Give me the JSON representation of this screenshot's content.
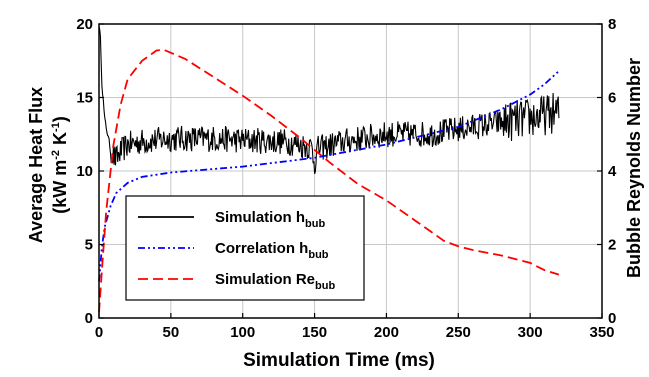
{
  "chart_data": {
    "type": "line",
    "xlabel": "Simulation Time (ms)",
    "ylabel_left": {
      "line1": "Average Heat Flux",
      "line2_prefix": "(kW m",
      "sup1": "-2",
      "mid": " K",
      "sup2": "-1",
      "suffix": ")"
    },
    "ylabel_right": "Bubble Reynolds Number",
    "xlim": [
      0,
      350
    ],
    "ylim_left": [
      0,
      20
    ],
    "ylim_right": [
      0,
      8
    ],
    "x_ticks": [
      "0",
      "50",
      "100",
      "150",
      "200",
      "250",
      "300",
      "350"
    ],
    "y_left_ticks": [
      "0",
      "5",
      "10",
      "15",
      "20"
    ],
    "y_right_ticks": [
      "0",
      "2",
      "4",
      "6",
      "8"
    ],
    "grid": true,
    "legend_position": "bottom-left",
    "series": [
      {
        "name": "Simulation h",
        "subscript": "bub",
        "axis": "left",
        "color": "#000000",
        "style": "solid",
        "noisy": true,
        "x": [
          0,
          1,
          2,
          4,
          6,
          8,
          10,
          12,
          15,
          20,
          30,
          50,
          80,
          100,
          130,
          148,
          150,
          152,
          170,
          200,
          230,
          260,
          280,
          300,
          310,
          318,
          320
        ],
        "y": [
          20,
          19,
          16,
          13.5,
          12.5,
          11.5,
          11,
          10.8,
          11.3,
          11.8,
          12,
          12.2,
          12.2,
          12.1,
          12,
          11.6,
          10.5,
          11.5,
          12,
          12.5,
          12.5,
          13,
          13.3,
          13.6,
          13.8,
          14,
          14
        ]
      },
      {
        "name": "Correlation h",
        "subscript": "bub",
        "axis": "left",
        "color": "#0000ff",
        "style": "dash-dot-dot",
        "x": [
          0,
          2,
          4,
          8,
          12,
          20,
          30,
          50,
          100,
          150,
          200,
          250,
          280,
          300,
          310,
          320
        ],
        "y": [
          2.5,
          4.8,
          6.2,
          7.6,
          8.5,
          9.2,
          9.6,
          9.9,
          10.3,
          10.9,
          11.8,
          13,
          14.2,
          15.2,
          15.9,
          16.8
        ]
      },
      {
        "name": "Simulation Re",
        "subscript": "bub",
        "axis": "right",
        "color": "#ff0000",
        "style": "dashed",
        "x": [
          0,
          2,
          5,
          10,
          15,
          20,
          30,
          40,
          45,
          60,
          80,
          100,
          120,
          140,
          160,
          180,
          200,
          220,
          240,
          250,
          260,
          280,
          300,
          310,
          320
        ],
        "y": [
          0.15,
          1.3,
          2.9,
          4.7,
          5.8,
          6.5,
          7.0,
          7.28,
          7.3,
          7.05,
          6.55,
          6.05,
          5.5,
          4.9,
          4.25,
          3.65,
          3.2,
          2.65,
          2.1,
          1.95,
          1.85,
          1.7,
          1.5,
          1.3,
          1.18
        ]
      }
    ]
  }
}
